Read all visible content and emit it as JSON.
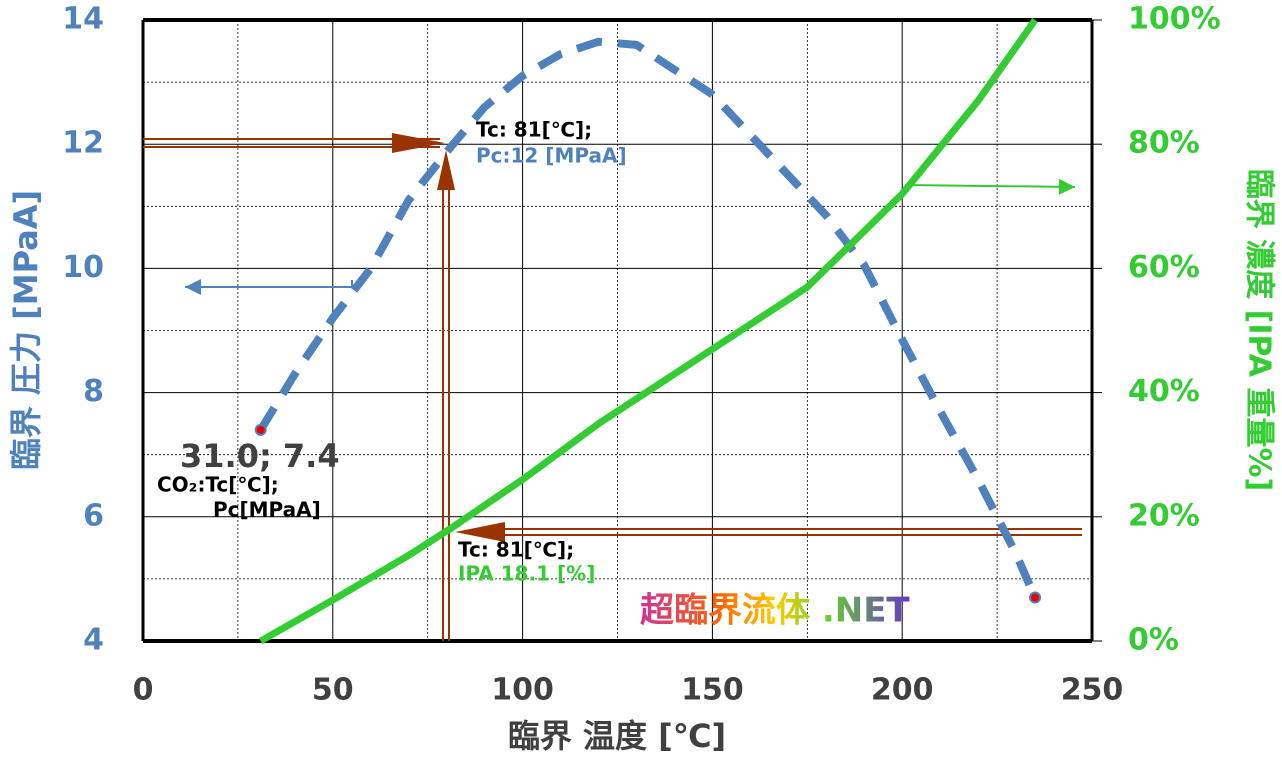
{
  "chart_data": {
    "type": "line",
    "xlabel": "臨界 温度 [℃]",
    "ylabel": "臨界 圧力 [MPaA]",
    "y2label": "臨界 濃度 [IPA 重量%]",
    "xlim": [
      0,
      250
    ],
    "xticks": [
      0,
      50,
      100,
      150,
      200,
      250
    ],
    "xminor": [
      25,
      75,
      125,
      175,
      225
    ],
    "ylim": [
      4,
      14
    ],
    "yticks": [
      4,
      6,
      8,
      10,
      12,
      14
    ],
    "yminor": [
      5,
      7,
      9,
      11,
      13
    ],
    "y2lim": [
      0,
      100
    ],
    "y2ticks": [
      {
        "value": 0,
        "label": "0%"
      },
      {
        "value": 20,
        "label": "20%"
      },
      {
        "value": 40,
        "label": "40%"
      },
      {
        "value": 60,
        "label": "60%"
      },
      {
        "value": 80,
        "label": "80%"
      },
      {
        "value": 100,
        "label": "100%"
      }
    ],
    "grid": true,
    "series": [
      {
        "color": "#4f81bd",
        "dashed": true,
        "x": [
          31,
          40,
          50,
          60,
          70,
          81,
          90,
          100,
          110,
          120,
          130,
          140,
          150,
          160,
          170,
          180,
          190,
          200,
          210,
          220,
          230,
          235
        ],
        "values": [
          7.4,
          8.3,
          9.2,
          10.0,
          11.1,
          11.95,
          12.6,
          13.1,
          13.45,
          13.65,
          13.6,
          13.2,
          12.8,
          12.15,
          11.5,
          10.85,
          10.05,
          8.85,
          7.7,
          6.6,
          5.4,
          4.7
        ]
      },
      {
        "color": "#33cc33",
        "axis": "y2",
        "x": [
          31,
          50,
          70,
          81,
          100,
          120,
          150,
          175,
          200,
          220,
          235
        ],
        "values": [
          0,
          6.6,
          13.8,
          18.1,
          26,
          35,
          47,
          57,
          72,
          87,
          100
        ]
      }
    ],
    "annotations": [
      {
        "text": "Tc: 81[℃];",
        "color": "#000000"
      },
      {
        "text": "Pc:12 [MPaA]",
        "color": "#4f81bd"
      },
      {
        "text": "Tc: 81[℃];",
        "color": "#000000"
      },
      {
        "text": "IPA 18.1 [%]",
        "color": "#33cc33"
      },
      {
        "text": "31.0; 7.4",
        "color": "#404040"
      },
      {
        "text": "CO₂:Tc[℃];",
        "color": "#000000"
      },
      {
        "text": "Pc[MPaA]",
        "color": "#000000"
      },
      {
        "text": "超臨界流体 .NET",
        "color": "#cc3399"
      }
    ]
  }
}
